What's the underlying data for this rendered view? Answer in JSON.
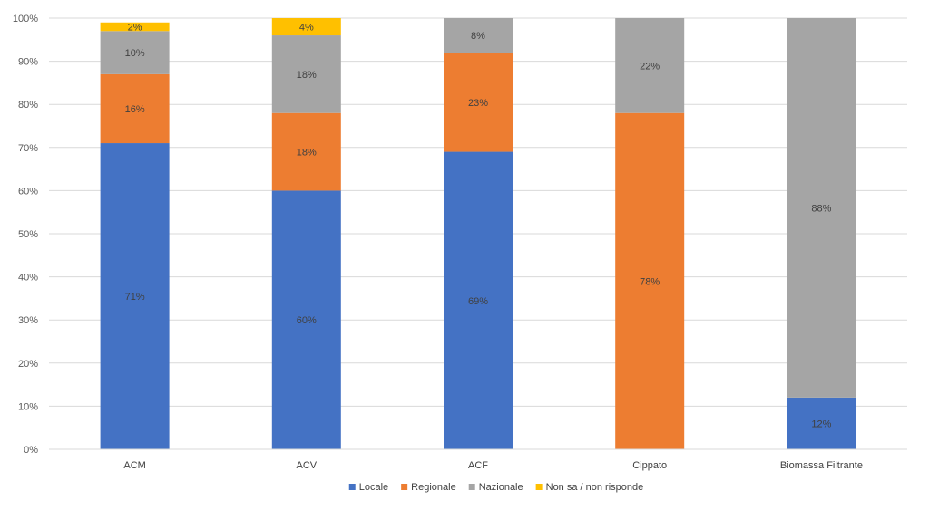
{
  "chart_data": {
    "type": "bar",
    "stacked": true,
    "categories": [
      "ACM",
      "ACV",
      "ACF",
      "Cippato",
      "Biomassa Filtrante"
    ],
    "series": [
      {
        "name": "Locale",
        "color": "#4472C4",
        "values": [
          71,
          60,
          69,
          0,
          12
        ],
        "labels": [
          "71%",
          "60%",
          "69%",
          "",
          "12%"
        ]
      },
      {
        "name": "Regionale",
        "color": "#ED7D31",
        "values": [
          16,
          18,
          23,
          78,
          0
        ],
        "labels": [
          "16%",
          "18%",
          "23%",
          "78%",
          ""
        ]
      },
      {
        "name": "Nazionale",
        "color": "#A5A5A5",
        "values": [
          10,
          18,
          8,
          22,
          88
        ],
        "labels": [
          "10%",
          "18%",
          "8%",
          "22%",
          "88%"
        ]
      },
      {
        "name": "Non sa / non risponde",
        "color": "#FFC000",
        "values": [
          2,
          4,
          0,
          0,
          0
        ],
        "labels": [
          "2%",
          "4%",
          "",
          "",
          ""
        ]
      }
    ],
    "yticks": [
      "0%",
      "10%",
      "20%",
      "30%",
      "40%",
      "50%",
      "60%",
      "70%",
      "80%",
      "90%",
      "100%"
    ],
    "ylim": [
      0,
      100
    ],
    "grid": true,
    "legend": "bottom"
  }
}
